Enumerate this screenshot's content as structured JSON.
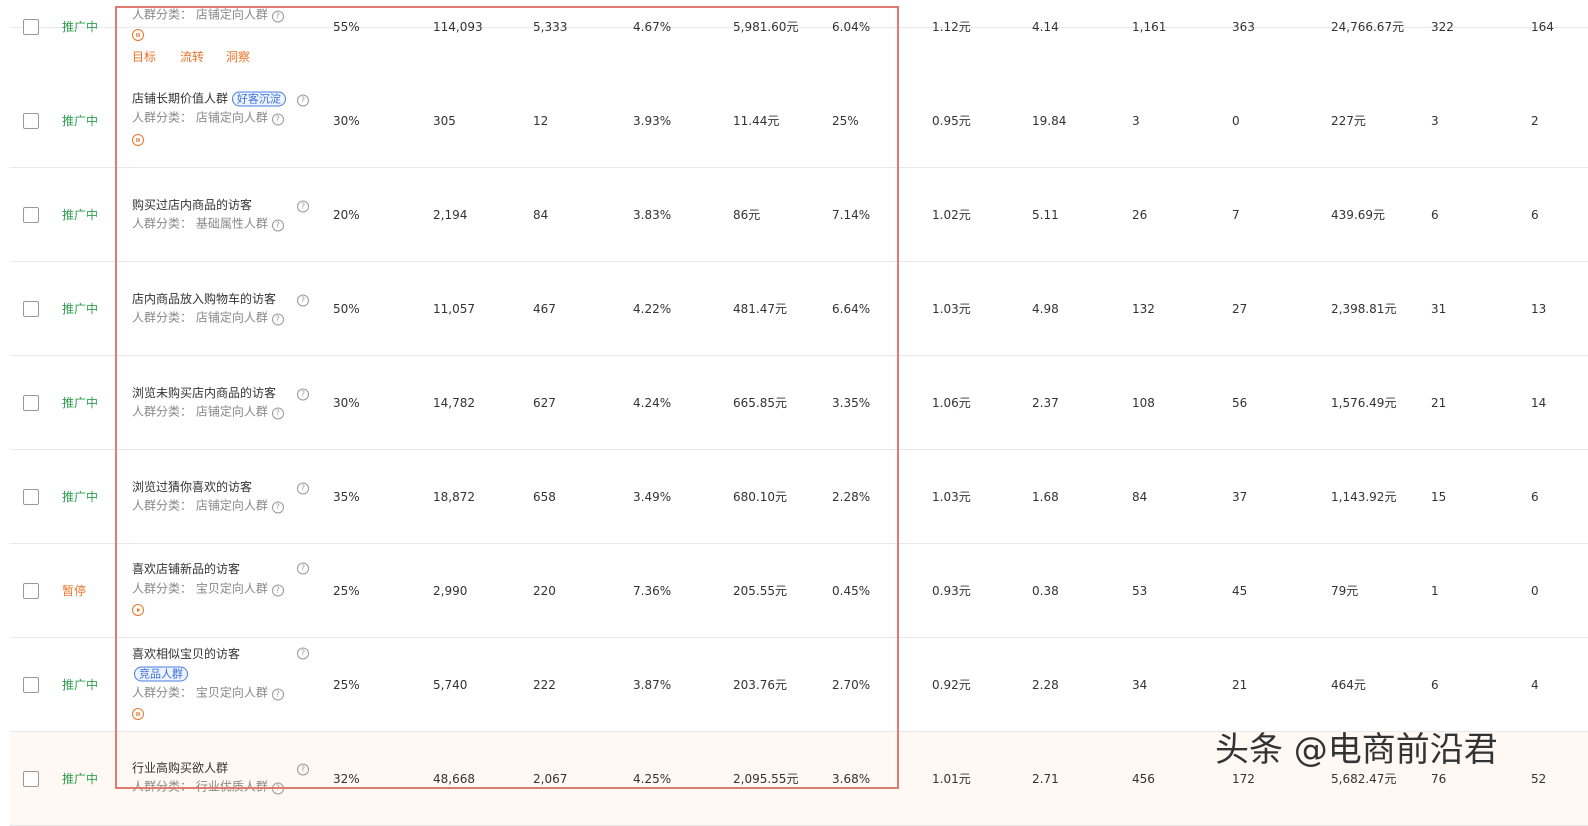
{
  "table": {
    "rows": [
      {
        "status": "推广中",
        "category_label": "人群分类：",
        "category": "店铺定向人群",
        "actions": [
          "目标",
          "流转",
          "洞察"
        ],
        "cells": [
          "55%",
          "114,093",
          "5,333",
          "4.67%",
          "5,981.60元",
          "6.04%",
          "1.12元",
          "4.14",
          "1,161",
          "363",
          "24,766.67元",
          "322",
          "164"
        ]
      },
      {
        "status": "推广中",
        "name": "店铺长期价值人群",
        "tag": "好客沉淀",
        "category_label": "人群分类：",
        "category": "店铺定向人群",
        "cells": [
          "30%",
          "305",
          "12",
          "3.93%",
          "11.44元",
          "25%",
          "0.95元",
          "19.84",
          "3",
          "0",
          "227元",
          "3",
          "2"
        ]
      },
      {
        "status": "推广中",
        "name": "购买过店内商品的访客",
        "category_label": "人群分类：",
        "category": "基础属性人群",
        "cells": [
          "20%",
          "2,194",
          "84",
          "3.83%",
          "86元",
          "7.14%",
          "1.02元",
          "5.11",
          "26",
          "7",
          "439.69元",
          "6",
          "6"
        ]
      },
      {
        "status": "推广中",
        "name": "店内商品放入购物车的访客",
        "category_label": "人群分类：",
        "category": "店铺定向人群",
        "cells": [
          "50%",
          "11,057",
          "467",
          "4.22%",
          "481.47元",
          "6.64%",
          "1.03元",
          "4.98",
          "132",
          "27",
          "2,398.81元",
          "31",
          "13"
        ]
      },
      {
        "status": "推广中",
        "name": "浏览未购买店内商品的访客",
        "category_label": "人群分类：",
        "category": "店铺定向人群",
        "cells": [
          "30%",
          "14,782",
          "627",
          "4.24%",
          "665.85元",
          "3.35%",
          "1.06元",
          "2.37",
          "108",
          "56",
          "1,576.49元",
          "21",
          "14"
        ]
      },
      {
        "status": "推广中",
        "name": "浏览过猜你喜欢的访客",
        "category_label": "人群分类：",
        "category": "店铺定向人群",
        "cells": [
          "35%",
          "18,872",
          "658",
          "3.49%",
          "680.10元",
          "2.28%",
          "1.03元",
          "1.68",
          "84",
          "37",
          "1,143.92元",
          "15",
          "6"
        ]
      },
      {
        "status": "暂停",
        "name": "喜欢店铺新品的访客",
        "category_label": "人群分类：",
        "category": "宝贝定向人群",
        "cells": [
          "25%",
          "2,990",
          "220",
          "7.36%",
          "205.55元",
          "0.45%",
          "0.93元",
          "0.38",
          "53",
          "45",
          "79元",
          "1",
          "0"
        ]
      },
      {
        "status": "推广中",
        "name": "喜欢相似宝贝的访客",
        "tag": "竞品人群",
        "category_label": "人群分类：",
        "category": "宝贝定向人群",
        "cells": [
          "25%",
          "5,740",
          "222",
          "3.87%",
          "203.76元",
          "2.70%",
          "0.92元",
          "2.28",
          "34",
          "21",
          "464元",
          "6",
          "4"
        ]
      },
      {
        "status": "推广中",
        "name": "行业高购买欲人群",
        "category_label": "人群分类：",
        "category": "行业优质人群",
        "cells": [
          "32%",
          "48,668",
          "2,067",
          "4.25%",
          "2,095.55元",
          "3.68%",
          "1.01元",
          "2.71",
          "456",
          "172",
          "5,682.47元",
          "76",
          "52"
        ]
      }
    ]
  },
  "watermark": "头条 @电商前沿君"
}
